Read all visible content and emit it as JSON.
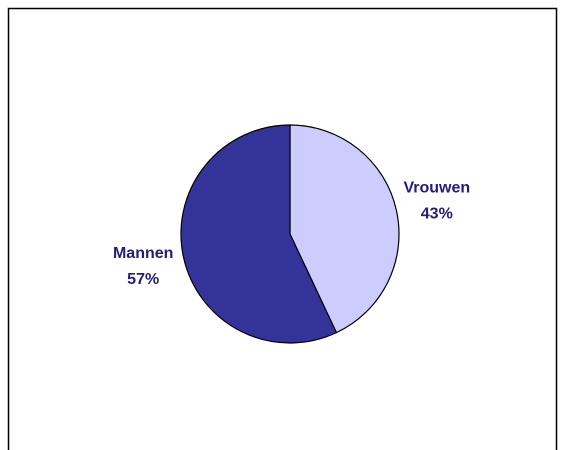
{
  "chart_data": {
    "type": "pie",
    "categories": [
      "Vrouwen",
      "Mannen"
    ],
    "values": [
      43,
      57
    ],
    "value_labels": [
      "43%",
      "57%"
    ],
    "colors": [
      "#ccccff",
      "#333399"
    ]
  }
}
